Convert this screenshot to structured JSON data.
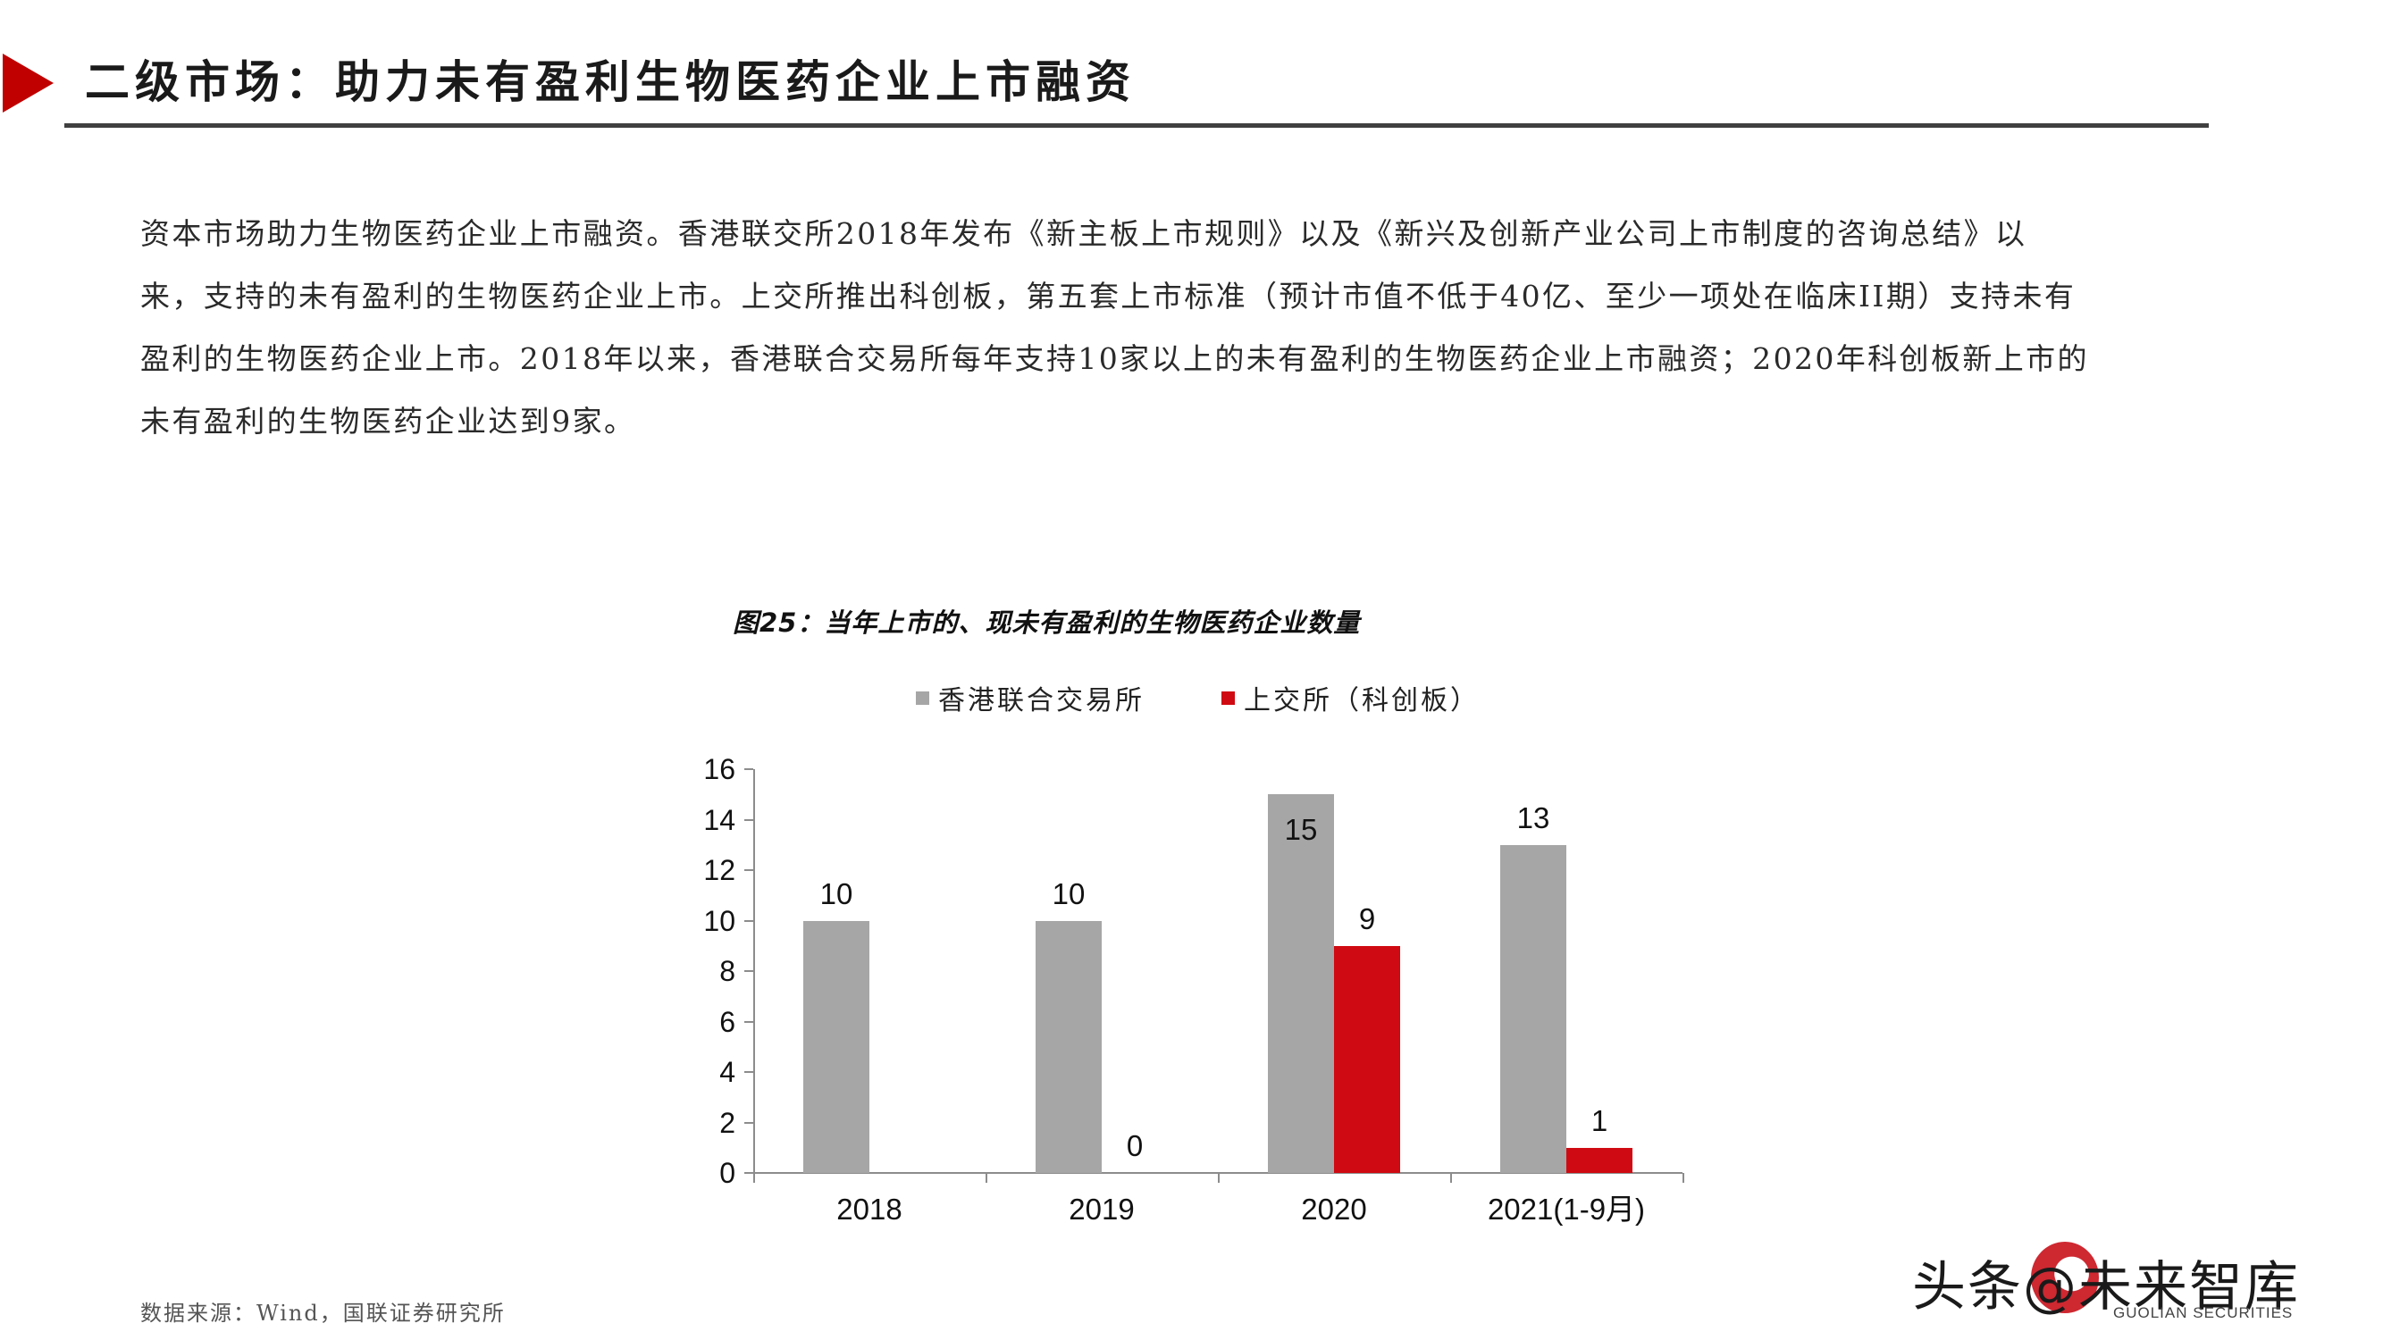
{
  "header": {
    "title": "二级市场：助力未有盈利生物医药企业上市融资",
    "accent_color": "#c00000"
  },
  "body": {
    "lines": [
      "资本市场助力生物医药企业上市融资。香港联交所2018年发布《新主板上市规则》以及《新兴及创新产业公司上市制度的咨询总结》以",
      "来，支持的未有盈利的生物医药企业上市。上交所推出科创板，第五套上市标准（预计市值不低于40亿、至少一项处在临床II期）支持未有",
      "盈利的生物医药企业上市。2018年以来，香港联合交易所每年支持10家以上的未有盈利的生物医药企业上市融资；2020年科创板新上市的",
      "未有盈利的生物医药企业达到9家。"
    ]
  },
  "chart": {
    "title": "图25：当年上市的、现未有盈利的生物医药企业数量",
    "legend": [
      {
        "label": "香港联合交易所",
        "color": "#a6a6a6"
      },
      {
        "label": "上交所（科创板）",
        "color": "#d00a12"
      }
    ],
    "y_ticks": [
      "16",
      "14",
      "12",
      "10",
      "8",
      "6",
      "4",
      "2",
      "0"
    ],
    "categories": [
      "2018",
      "2019",
      "2020",
      "2021(1-9月)"
    ],
    "value_labels": {
      "hk": [
        "10",
        "10",
        "15",
        "13"
      ],
      "sse": [
        "",
        "0",
        "9",
        "1"
      ]
    }
  },
  "chart_data": {
    "type": "bar",
    "title": "图25：当年上市的、现未有盈利的生物医药企业数量",
    "categories": [
      "2018",
      "2019",
      "2020",
      "2021(1-9月)"
    ],
    "series": [
      {
        "name": "香港联合交易所",
        "values": [
          10,
          10,
          15,
          13
        ],
        "color": "#a6a6a6"
      },
      {
        "name": "上交所（科创板）",
        "values": [
          null,
          0,
          9,
          1
        ],
        "color": "#d00a12"
      }
    ],
    "xlabel": "",
    "ylabel": "",
    "ylim": [
      0,
      16
    ],
    "y_ticks": [
      0,
      2,
      4,
      6,
      8,
      10,
      12,
      14,
      16
    ],
    "grid": false,
    "legend_position": "top",
    "data_labels": true
  },
  "footer": {
    "source": "数据来源：Wind，国联证券研究所",
    "watermark": "头条@未来智库",
    "logo_text": "GUOLIAN SECURITIES"
  }
}
